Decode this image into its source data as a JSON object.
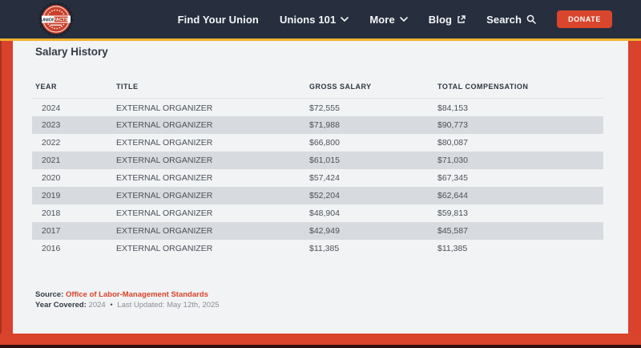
{
  "header": {
    "logo": {
      "word1": "UNION",
      "word2": "FACTS"
    },
    "nav": [
      {
        "label": "Find Your Union"
      },
      {
        "label": "Unions 101"
      },
      {
        "label": "More"
      },
      {
        "label": "Blog"
      },
      {
        "label": "Search"
      }
    ],
    "donate_label": "DONATE"
  },
  "page": {
    "title": "Salary History"
  },
  "table": {
    "columns": [
      "YEAR",
      "TITLE",
      "GROSS SALARY",
      "TOTAL COMPENSATION"
    ],
    "rows": [
      {
        "year": "2024",
        "title": "EXTERNAL ORGANIZER",
        "gross": "$72,555",
        "total": "$84,153"
      },
      {
        "year": "2023",
        "title": "EXTERNAL ORGANIZER",
        "gross": "$71,988",
        "total": "$90,773"
      },
      {
        "year": "2022",
        "title": "EXTERNAL ORGANIZER",
        "gross": "$66,800",
        "total": "$80,087"
      },
      {
        "year": "2021",
        "title": "EXTERNAL ORGANIZER",
        "gross": "$61,015",
        "total": "$71,030"
      },
      {
        "year": "2020",
        "title": "EXTERNAL ORGANIZER",
        "gross": "$57,424",
        "total": "$67,345"
      },
      {
        "year": "2019",
        "title": "EXTERNAL ORGANIZER",
        "gross": "$52,204",
        "total": "$62,644"
      },
      {
        "year": "2018",
        "title": "EXTERNAL ORGANIZER",
        "gross": "$48,904",
        "total": "$59,813"
      },
      {
        "year": "2017",
        "title": "EXTERNAL ORGANIZER",
        "gross": "$42,949",
        "total": "$45,587"
      },
      {
        "year": "2016",
        "title": "EXTERNAL ORGANIZER",
        "gross": "$11,385",
        "total": "$11,385"
      }
    ]
  },
  "footer": {
    "source_label": "Source:",
    "source_link": "Office of Labor-Management Standards",
    "covered_label": "Year Covered:",
    "covered_value": "2024",
    "separator": "•",
    "last_updated": "Last Updated: May 12th, 2025"
  },
  "colors": {
    "header_bg": "#272f3e",
    "accent_yellow": "#f2b22e",
    "frame_red": "#d9422b",
    "donate_red": "#d9452d",
    "row_stripe": "#d7dbdf",
    "link_red": "#d8432a"
  }
}
